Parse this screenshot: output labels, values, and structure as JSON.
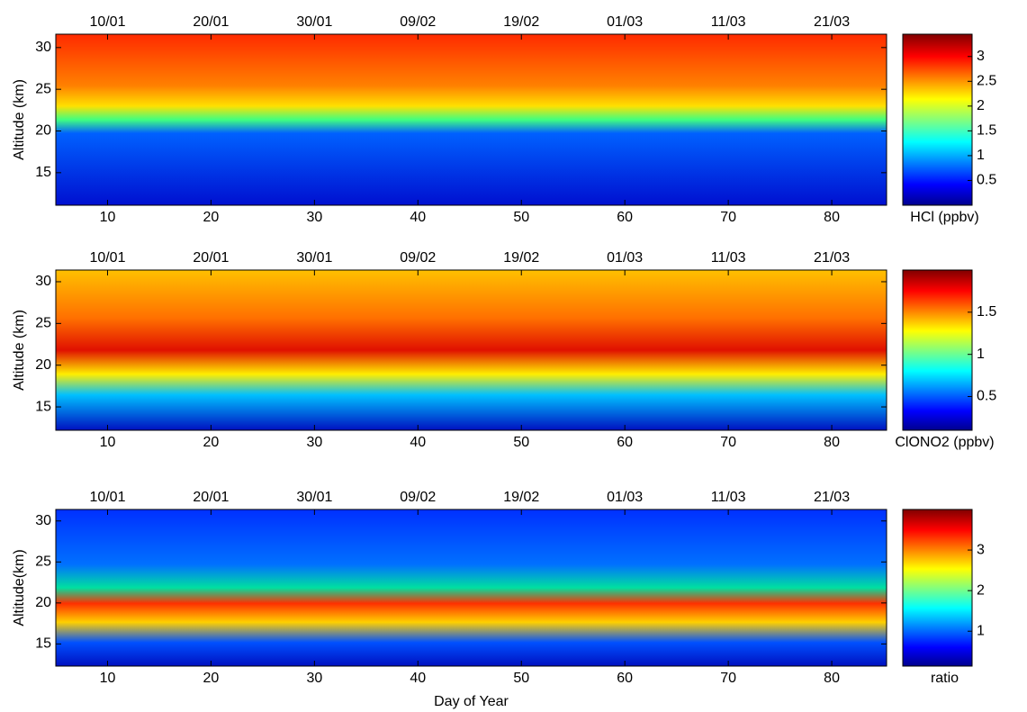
{
  "chart_data": [
    {
      "type": "contour",
      "ylabel": "Altitude (km)",
      "colorbar_label": "HCl (ppbv)",
      "xlim": [
        5,
        85.3
      ],
      "ylim": [
        11.1,
        31.6
      ],
      "clim": [
        0,
        3.45
      ],
      "xticks": [
        10,
        20,
        30,
        40,
        50,
        60,
        70,
        80
      ],
      "x2ticks": [
        {
          "value": 10,
          "label": "10/01"
        },
        {
          "value": 20,
          "label": "20/01"
        },
        {
          "value": 30,
          "label": "30/01"
        },
        {
          "value": 40,
          "label": "09/02"
        },
        {
          "value": 50,
          "label": "19/02"
        },
        {
          "value": 60,
          "label": "01/03"
        },
        {
          "value": 70,
          "label": "11/03"
        },
        {
          "value": 80,
          "label": "21/03"
        }
      ],
      "yticks": [
        15,
        20,
        25,
        30
      ],
      "cticks": [
        0.5,
        1,
        1.5,
        2,
        2.5,
        3
      ],
      "colormap": "jet"
    },
    {
      "type": "contour",
      "ylabel": "Altitude (km)",
      "colorbar_label": "ClONO2 (ppbv)",
      "xlim": [
        5,
        85.3
      ],
      "ylim": [
        12.2,
        31.4
      ],
      "clim": [
        0.1,
        2.0
      ],
      "xticks": [
        10,
        20,
        30,
        40,
        50,
        60,
        70,
        80
      ],
      "x2ticks": [
        {
          "value": 10,
          "label": "10/01"
        },
        {
          "value": 20,
          "label": "20/01"
        },
        {
          "value": 30,
          "label": "30/01"
        },
        {
          "value": 40,
          "label": "09/02"
        },
        {
          "value": 50,
          "label": "19/02"
        },
        {
          "value": 60,
          "label": "01/03"
        },
        {
          "value": 70,
          "label": "11/03"
        },
        {
          "value": 80,
          "label": "21/03"
        }
      ],
      "yticks": [
        15,
        20,
        25,
        30
      ],
      "cticks": [
        0.5,
        1,
        1.5
      ],
      "colormap": "jet"
    },
    {
      "type": "contour",
      "ylabel": "Altitude(km)",
      "xlabel": "Day of Year",
      "colorbar_label": "ratio",
      "xlim": [
        5,
        85.3
      ],
      "ylim": [
        12.3,
        31.4
      ],
      "clim": [
        0.14,
        4.0
      ],
      "xticks": [
        10,
        20,
        30,
        40,
        50,
        60,
        70,
        80
      ],
      "x2ticks": [
        {
          "value": 10,
          "label": "10/01"
        },
        {
          "value": 20,
          "label": "20/01"
        },
        {
          "value": 30,
          "label": "30/01"
        },
        {
          "value": 40,
          "label": "09/02"
        },
        {
          "value": 50,
          "label": "19/02"
        },
        {
          "value": 60,
          "label": "01/03"
        },
        {
          "value": 70,
          "label": "11/03"
        },
        {
          "value": 80,
          "label": "21/03"
        }
      ],
      "yticks": [
        15,
        20,
        25,
        30
      ],
      "cticks": [
        1,
        2,
        3
      ],
      "colormap": "jet"
    }
  ]
}
